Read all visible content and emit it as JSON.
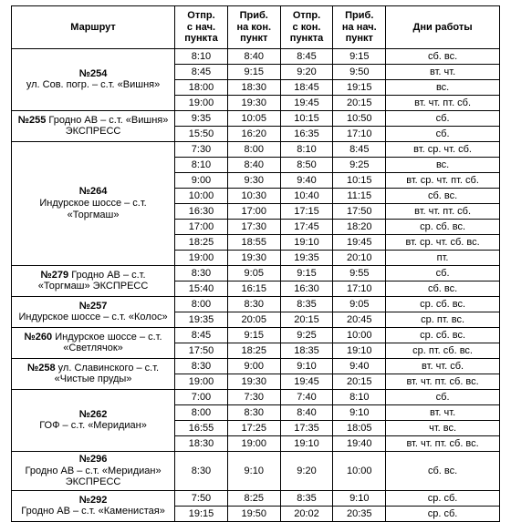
{
  "columns": [
    {
      "key": "route",
      "label": "Маршрут"
    },
    {
      "key": "dep_start",
      "label": "Отпр.\nс нач.\nпункта"
    },
    {
      "key": "arr_end",
      "label": "Приб.\nна кон.\nпункт"
    },
    {
      "key": "dep_end",
      "label": "Отпр.\nс кон.\nпункта"
    },
    {
      "key": "arr_start",
      "label": "Приб.\nна нач.\nпункт"
    },
    {
      "key": "days",
      "label": "Дни работы"
    }
  ],
  "routes": [
    {
      "number": "№254",
      "name": "ул. Сов. погр. – с.т. «Вишня»",
      "rows": [
        {
          "t": [
            "8:10",
            "8:40",
            "8:45",
            "9:15"
          ],
          "days": "сб. вс."
        },
        {
          "t": [
            "8:45",
            "9:15",
            "9:20",
            "9:50"
          ],
          "days": "вт. чт."
        },
        {
          "t": [
            "18:00",
            "18:30",
            "18:45",
            "19:15"
          ],
          "days": "вс."
        },
        {
          "t": [
            "19:00",
            "19:30",
            "19:45",
            "20:15"
          ],
          "days": "вт. чт. пт. сб."
        }
      ]
    },
    {
      "number": "№255",
      "name": "Гродно АВ – с.т. «Вишня» ЭКСПРЕСС",
      "plain_label": "№255 Гродно АВ – с.т. «Вишня» ЭКСПРЕСС",
      "rows": [
        {
          "t": [
            "9:35",
            "10:05",
            "10:15",
            "10:50"
          ],
          "days": "сб."
        },
        {
          "t": [
            "15:50",
            "16:20",
            "16:35",
            "17:10"
          ],
          "days": "сб."
        }
      ]
    },
    {
      "number": "№264",
      "name": "Индурское шоссе – с.т. «Торгмаш»",
      "rows": [
        {
          "t": [
            "7:30",
            "8:00",
            "8:10",
            "8:45"
          ],
          "days": "вт. ср. чт. сб."
        },
        {
          "t": [
            "8:10",
            "8:40",
            "8:50",
            "9:25"
          ],
          "days": "вс."
        },
        {
          "t": [
            "9:00",
            "9:30",
            "9:40",
            "10:15"
          ],
          "days": "вт. ср. чт. пт. сб."
        },
        {
          "t": [
            "10:00",
            "10:30",
            "10:40",
            "11:15"
          ],
          "days": "сб. вс."
        },
        {
          "t": [
            "16:30",
            "17:00",
            "17:15",
            "17:50"
          ],
          "days": "вт. чт. пт. сб."
        },
        {
          "t": [
            "17:00",
            "17:30",
            "17:45",
            "18:20"
          ],
          "days": "ср. сб. вс."
        },
        {
          "t": [
            "18:25",
            "18:55",
            "19:10",
            "19:45"
          ],
          "days": "вт. ср. чт. сб. вс."
        },
        {
          "t": [
            "19:00",
            "19:30",
            "19:35",
            "20:10"
          ],
          "days": "пт."
        }
      ]
    },
    {
      "number": "№279",
      "name": "Гродно АВ – с.т. «Торгмаш» ЭКСПРЕСС",
      "plain_label": "№279 Гродно АВ – с.т. «Торгмаш» ЭКСПРЕСС",
      "rows": [
        {
          "t": [
            "8:30",
            "9:05",
            "9:15",
            "9:55"
          ],
          "days": "сб."
        },
        {
          "t": [
            "15:40",
            "16:15",
            "16:30",
            "17:10"
          ],
          "days": "сб. вс."
        }
      ]
    },
    {
      "number": "№257",
      "name": "Индурское шоссе  –  с.т. «Колос»",
      "rows": [
        {
          "t": [
            "8:00",
            "8:30",
            "8:35",
            "9:05"
          ],
          "days": "ср. сб. вс."
        },
        {
          "t": [
            "19:35",
            "20:05",
            "20:15",
            "20:45"
          ],
          "days": "ср. пт. вс."
        }
      ]
    },
    {
      "number": "№260",
      "name": "Индурское шоссе – с.т. «Светлячок»",
      "plain_label": "№260  Индурское шоссе – с.т. «Светлячок»",
      "rows": [
        {
          "t": [
            "8:45",
            "9:15",
            "9:25",
            "10:00"
          ],
          "days": "ср. сб. вс."
        },
        {
          "t": [
            "17:50",
            "18:25",
            "18:35",
            "19:10"
          ],
          "days": "ср. пт. сб. вс."
        }
      ]
    },
    {
      "number": "№258",
      "name": "ул. Славинского – с.т. «Чистые пруды»",
      "plain_label": "№258 ул. Славинского – с.т. «Чистые пруды»",
      "rows": [
        {
          "t": [
            "8:30",
            "9:00",
            "9:10",
            "9:40"
          ],
          "days": "вт. чт. сб."
        },
        {
          "t": [
            "19:00",
            "19:30",
            "19:45",
            "20:15"
          ],
          "days": "вт. чт. пт. сб. вс."
        }
      ]
    },
    {
      "number": "№262",
      "name": "ГОФ –  с.т. «Меридиан»",
      "rows": [
        {
          "t": [
            "7:00",
            "7:30",
            "7:40",
            "8:10"
          ],
          "days": "сб."
        },
        {
          "t": [
            "8:00",
            "8:30",
            "8:40",
            "9:10"
          ],
          "days": "вт. чт."
        },
        {
          "t": [
            "16:55",
            "17:25",
            "17:35",
            "18:05"
          ],
          "days": "чт. вс."
        },
        {
          "t": [
            "18:30",
            "19:00",
            "19:10",
            "19:40"
          ],
          "days": "вт. чт. пт. сб. вс."
        }
      ]
    },
    {
      "number": "№296",
      "name": "Гродно АВ – с.т. «Меридиан» ЭКСПРЕСС",
      "rows": [
        {
          "t": [
            "8:30",
            "9:10",
            "9:20",
            "10:00"
          ],
          "days": "сб. вс."
        }
      ]
    },
    {
      "number": "№292",
      "name": "Гродно АВ – с.т. «Каменистая»",
      "rows": [
        {
          "t": [
            "7:50",
            "8:25",
            "8:35",
            "9:10"
          ],
          "days": "ср. сб."
        },
        {
          "t": [
            "19:15",
            "19:50",
            "20:02",
            "20:35"
          ],
          "days": "ср. сб."
        }
      ]
    }
  ]
}
